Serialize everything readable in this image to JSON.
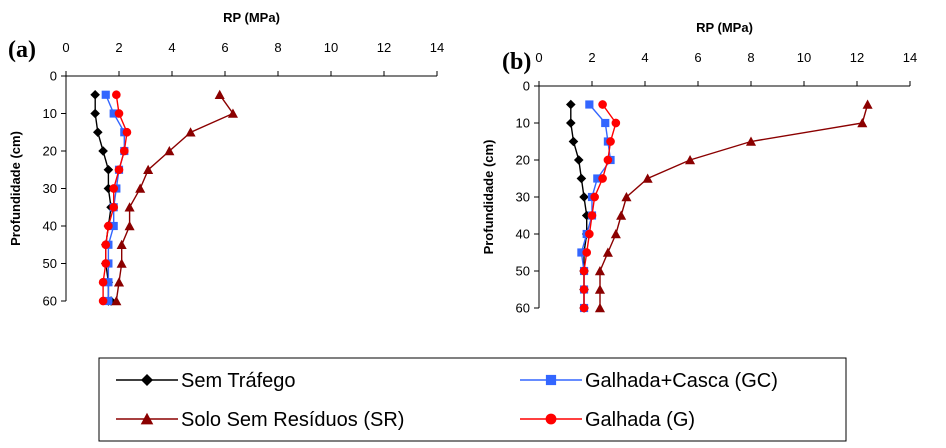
{
  "chart_data": [
    {
      "panel": "(a)",
      "type": "line",
      "xlabel": "RP (MPa)",
      "ylabel": "Profundidade (cm)",
      "xlim": [
        0,
        14
      ],
      "ylim": [
        60,
        0
      ],
      "x_axis_position": "top",
      "xticks": [
        "0",
        "2",
        "4",
        "6",
        "8",
        "10",
        "12",
        "14"
      ],
      "yticks": [
        "0",
        "10",
        "20",
        "30",
        "40",
        "50",
        "60"
      ],
      "grid": false,
      "series": [
        {
          "name": "Sem Tráfego",
          "color": "#000000",
          "marker": "diamond",
          "x": [
            1.1,
            1.1,
            1.2,
            1.4,
            1.6,
            1.6,
            1.7,
            1.6,
            1.5,
            1.5,
            1.6,
            1.6,
            1.7
          ],
          "y": [
            5,
            10,
            15,
            20,
            25,
            30,
            35,
            40,
            45,
            50,
            55,
            60,
            60
          ]
        },
        {
          "name": "Galhada+Casca (GC)",
          "color": "#3366ff",
          "marker": "square",
          "x": [
            1.5,
            1.8,
            2.2,
            2.2,
            2.0,
            1.9,
            1.8,
            1.8,
            1.6,
            1.6,
            1.6,
            1.6
          ],
          "y": [
            5,
            10,
            15,
            20,
            25,
            30,
            35,
            40,
            45,
            50,
            55,
            60
          ]
        },
        {
          "name": "Solo Sem Resíduos (SR)",
          "color": "#8b0000",
          "marker": "triangle",
          "x": [
            5.8,
            6.3,
            4.7,
            3.9,
            3.1,
            2.8,
            2.4,
            2.4,
            2.1,
            2.1,
            2.0,
            1.9
          ],
          "y": [
            5,
            10,
            15,
            20,
            25,
            30,
            35,
            40,
            45,
            50,
            55,
            60
          ]
        },
        {
          "name": "Galhada (G)",
          "color": "#ff0000",
          "marker": "circle",
          "x": [
            1.9,
            2.0,
            2.3,
            2.2,
            2.0,
            1.8,
            1.8,
            1.6,
            1.5,
            1.5,
            1.4,
            1.4
          ],
          "y": [
            5,
            10,
            15,
            20,
            25,
            30,
            35,
            40,
            45,
            50,
            55,
            60
          ]
        }
      ]
    },
    {
      "panel": "(b)",
      "type": "line",
      "xlabel": "RP (MPa)",
      "ylabel": "Profundidade (cm)",
      "xlim": [
        0,
        14
      ],
      "ylim": [
        60,
        0
      ],
      "x_axis_position": "top",
      "xticks": [
        "0",
        "2",
        "4",
        "6",
        "8",
        "10",
        "12",
        "14"
      ],
      "yticks": [
        "0",
        "10",
        "20",
        "30",
        "40",
        "50",
        "60"
      ],
      "grid": false,
      "series": [
        {
          "name": "Sem Tráfego",
          "color": "#000000",
          "marker": "diamond",
          "x": [
            1.2,
            1.2,
            1.3,
            1.5,
            1.6,
            1.7,
            1.8,
            1.8,
            1.7,
            1.7,
            1.7,
            1.7
          ],
          "y": [
            5,
            10,
            15,
            20,
            25,
            30,
            35,
            40,
            45,
            50,
            55,
            60
          ]
        },
        {
          "name": "Galhada+Casca (GC)",
          "color": "#3366ff",
          "marker": "square",
          "x": [
            1.9,
            2.5,
            2.6,
            2.7,
            2.2,
            2.0,
            2.0,
            1.8,
            1.6,
            1.7,
            1.7,
            1.7
          ],
          "y": [
            5,
            10,
            15,
            20,
            25,
            30,
            35,
            40,
            45,
            50,
            55,
            60
          ]
        },
        {
          "name": "Solo Sem Resíduos (SR)",
          "color": "#8b0000",
          "marker": "triangle",
          "x": [
            12.4,
            12.2,
            8.0,
            5.7,
            4.1,
            3.3,
            3.1,
            2.9,
            2.6,
            2.3,
            2.3,
            2.3
          ],
          "y": [
            5,
            10,
            15,
            20,
            25,
            30,
            35,
            40,
            45,
            50,
            55,
            60
          ]
        },
        {
          "name": "Galhada (G)",
          "color": "#ff0000",
          "marker": "circle",
          "x": [
            2.4,
            2.9,
            2.7,
            2.6,
            2.4,
            2.1,
            2.0,
            1.9,
            1.8,
            1.7,
            1.7,
            1.7
          ],
          "y": [
            5,
            10,
            15,
            20,
            25,
            30,
            35,
            40,
            45,
            50,
            55,
            60
          ]
        }
      ]
    }
  ],
  "legend": {
    "placement": "bottom",
    "entries": [
      {
        "label": "Sem Tráfego",
        "color": "#000000",
        "marker": "diamond"
      },
      {
        "label": "Galhada+Casca (GC)",
        "color": "#3366ff",
        "marker": "square"
      },
      {
        "label": "Solo Sem Resíduos (SR)",
        "color": "#8b0000",
        "marker": "triangle"
      },
      {
        "label": "Galhada (G)",
        "color": "#ff0000",
        "marker": "circle"
      }
    ]
  }
}
